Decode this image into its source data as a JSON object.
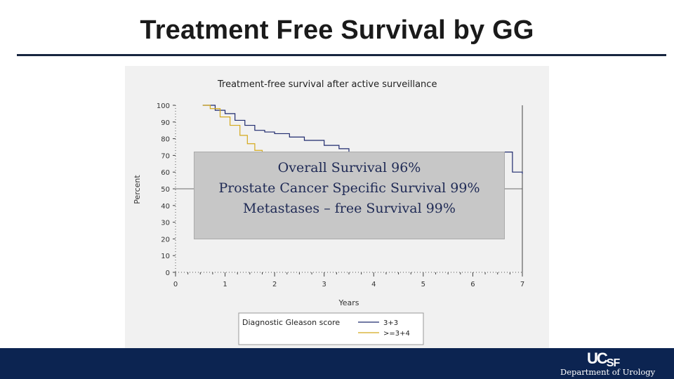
{
  "slide": {
    "title": "Treatment Free Survival by GG",
    "overlay_lines": [
      "Overall Survival 96%",
      "Prostate Cancer Specific Survival 99%",
      "Metastases – free Survival 99%"
    ],
    "footer": {
      "logo_text_main": "UC",
      "logo_text_sub": "SF",
      "department": "Department of Urology"
    }
  },
  "colors": {
    "title_rule": "#17253f",
    "footer_bg": "#0c2451",
    "series_3_3": "#1f2a6e",
    "series_ge_3_4": "#d4a91c",
    "overlay_text": "#1f2a55",
    "overlay_bg": "#c7c7c7"
  },
  "chart_data": {
    "type": "line",
    "title": "Treatment-free survival after active surveillance",
    "xlabel": "Years",
    "ylabel": "Percent",
    "xlim": [
      0,
      7
    ],
    "ylim": [
      0,
      100
    ],
    "x_ticks": [
      "0",
      "1",
      "2",
      "3",
      "4",
      "5",
      "6",
      "7"
    ],
    "y_ticks": [
      "0",
      "10",
      "20",
      "30",
      "40",
      "50",
      "60",
      "70",
      "80",
      "90",
      "100"
    ],
    "legend_title": "Diagnostic Gleason score",
    "legend_position": "bottom",
    "reference_line_y": 50,
    "series": [
      {
        "name": "3+3",
        "color": "#1f2a6e",
        "x": [
          0.55,
          0.8,
          1.0,
          1.2,
          1.4,
          1.6,
          1.8,
          2.0,
          2.3,
          2.6,
          3.0,
          3.3,
          3.5,
          6.8,
          7.0
        ],
        "y": [
          100,
          97,
          95,
          91,
          88,
          85,
          84,
          83,
          81,
          79,
          76,
          74,
          72,
          60,
          59
        ]
      },
      {
        "name": ">=3+4",
        "color": "#d4a91c",
        "x": [
          0.55,
          0.7,
          0.9,
          1.1,
          1.3,
          1.45,
          1.6,
          1.75,
          1.85
        ],
        "y": [
          100,
          98,
          93,
          88,
          82,
          77,
          73,
          71,
          70
        ]
      }
    ]
  }
}
